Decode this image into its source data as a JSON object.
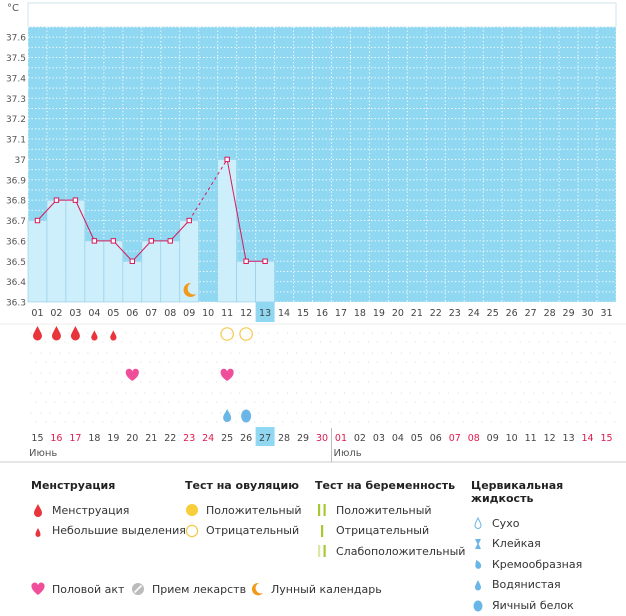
{
  "colors": {
    "band": "#90d8f2",
    "bar": "#cdeefb",
    "bar_stroke": "#8fcde6",
    "grid": "#ffffff",
    "line": "#d61a5a",
    "weekend": "#e0194c",
    "menstruation": "#e8343b",
    "heart": "#ef4e9a",
    "ovulation_positive": "#f7cd3a",
    "ovulation_negative": "#f5c84a",
    "pregnancy": "#a8c832",
    "cervical": "#6ab6e6",
    "moon": "#f29a18",
    "pill": "#bbbbbb",
    "today": "#90d8f2"
  },
  "chart_data": {
    "type": "line",
    "yunit": "°C",
    "ylim": [
      36.3,
      37.65
    ],
    "yticks": [
      "36.3",
      "36.4",
      "36.5",
      "36.6",
      "36.7",
      "36.8",
      "36.9",
      "37",
      "37.1",
      "37.2",
      "37.3",
      "37.4",
      "37.5",
      "37.6"
    ],
    "grid": true,
    "cycle_days": [
      "01",
      "02",
      "03",
      "04",
      "05",
      "06",
      "07",
      "08",
      "09",
      "10",
      "11",
      "12",
      "13",
      "14",
      "15",
      "16",
      "17",
      "18",
      "19",
      "20",
      "21",
      "22",
      "23",
      "24",
      "25",
      "26",
      "27",
      "28",
      "29",
      "30",
      "31"
    ],
    "today_index": 12,
    "temperature": [
      36.7,
      36.8,
      36.8,
      36.6,
      36.6,
      36.5,
      36.6,
      36.6,
      36.7,
      null,
      37.0,
      36.5,
      36.5,
      null,
      null,
      null,
      null,
      null,
      null,
      null,
      null,
      null,
      null,
      null,
      null,
      null,
      null,
      null,
      null,
      null,
      null
    ],
    "moon_index": 8,
    "calendar_dates": [
      {
        "label": "15",
        "red": false
      },
      {
        "label": "16",
        "red": true
      },
      {
        "label": "17",
        "red": true
      },
      {
        "label": "18",
        "red": false
      },
      {
        "label": "19",
        "red": false
      },
      {
        "label": "20",
        "red": false
      },
      {
        "label": "21",
        "red": false
      },
      {
        "label": "22",
        "red": false
      },
      {
        "label": "23",
        "red": true
      },
      {
        "label": "24",
        "red": true
      },
      {
        "label": "25",
        "red": false
      },
      {
        "label": "26",
        "red": false
      },
      {
        "label": "27",
        "red": false
      },
      {
        "label": "28",
        "red": false
      },
      {
        "label": "29",
        "red": false
      },
      {
        "label": "30",
        "red": true
      },
      {
        "label": "01",
        "red": true
      },
      {
        "label": "02",
        "red": false
      },
      {
        "label": "03",
        "red": false
      },
      {
        "label": "04",
        "red": false
      },
      {
        "label": "05",
        "red": false
      },
      {
        "label": "06",
        "red": false
      },
      {
        "label": "07",
        "red": true
      },
      {
        "label": "08",
        "red": true
      },
      {
        "label": "09",
        "red": false
      },
      {
        "label": "10",
        "red": false
      },
      {
        "label": "11",
        "red": false
      },
      {
        "label": "12",
        "red": false
      },
      {
        "label": "13",
        "red": false
      },
      {
        "label": "14",
        "red": true
      },
      {
        "label": "15",
        "red": true
      }
    ],
    "month_labels": [
      {
        "text": "Июнь",
        "index": 0
      },
      {
        "text": "Июль",
        "index": 16
      }
    ],
    "markers": {
      "menstruation": [
        {
          "index": 0,
          "level": "heavy"
        },
        {
          "index": 1,
          "level": "heavy"
        },
        {
          "index": 2,
          "level": "heavy"
        },
        {
          "index": 3,
          "level": "light"
        },
        {
          "index": 4,
          "level": "light"
        }
      ],
      "ovulation_test": [
        {
          "index": 10,
          "result": "negative"
        },
        {
          "index": 11,
          "result": "negative"
        }
      ],
      "intercourse": [
        5,
        10
      ],
      "cervical_fluid": [
        {
          "index": 10,
          "type": "watery"
        },
        {
          "index": 11,
          "type": "egg-white"
        }
      ]
    }
  },
  "legend": {
    "menstruation": {
      "title": "Менструация",
      "items": [
        "Менструация",
        "Небольшие выделения"
      ]
    },
    "ovulation": {
      "title": "Тест на овуляцию",
      "items": [
        "Положительный",
        "Отрицательный"
      ]
    },
    "pregnancy": {
      "title": "Тест на беременность",
      "items": [
        "Положительный",
        "Отрицательный",
        "Слабоположительный"
      ]
    },
    "cervical": {
      "title": "Цервикальная жидкость",
      "items": [
        "Сухо",
        "Клейкая",
        "Кремообразная",
        "Водянистая",
        "Яичный белок"
      ]
    },
    "bottom": [
      "Половой акт",
      "Прием лекарств",
      "Лунный календарь"
    ]
  }
}
